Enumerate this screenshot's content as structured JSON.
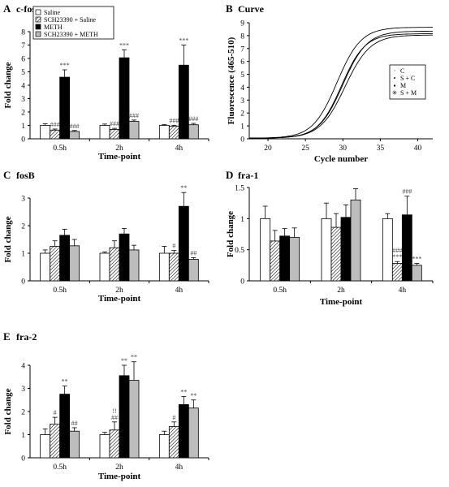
{
  "chart_data": [
    {
      "id": "A",
      "panel_letter": "A",
      "title": "c-fos",
      "type": "bar",
      "ylabel": "Fold change",
      "xlabel": "Time-point",
      "ylim": [
        0,
        8
      ],
      "yticks": [
        "0",
        "1",
        "2",
        "3",
        "4",
        "5",
        "6",
        "7",
        "8"
      ],
      "categories": [
        "0.5h",
        "2h",
        "4h"
      ],
      "legend": {
        "placement": "top-left",
        "entries": [
          "Saline",
          "SCH23390 + Saline",
          "METH",
          "SCH23390 + METH"
        ]
      },
      "series": [
        {
          "name": "Saline",
          "values": [
            1.0,
            1.0,
            1.0
          ],
          "errors": [
            0.12,
            0.1,
            0.07
          ],
          "marks": [
            "",
            "",
            ""
          ]
        },
        {
          "name": "SCH23390 + Saline",
          "values": [
            0.65,
            0.7,
            0.95
          ],
          "errors": [
            0.08,
            0.08,
            0.06
          ],
          "marks": [
            "###",
            "###",
            "###"
          ]
        },
        {
          "name": "METH",
          "values": [
            4.6,
            6.05,
            5.5
          ],
          "errors": [
            0.55,
            0.6,
            1.5
          ],
          "marks": [
            "***",
            "***",
            "***"
          ]
        },
        {
          "name": "SCH23390 + METH",
          "values": [
            0.55,
            1.3,
            1.05
          ],
          "errors": [
            0.07,
            0.1,
            0.1
          ],
          "marks": [
            "###",
            "###",
            "###"
          ]
        }
      ]
    },
    {
      "id": "B",
      "panel_letter": "B",
      "title": "Curve",
      "type": "line",
      "ylabel": "Fluorescence (465-510)",
      "xlabel": "Cycle number",
      "xlim": [
        17.5,
        42
      ],
      "ylim": [
        0,
        9
      ],
      "xticks": [
        "20",
        "25",
        "30",
        "35",
        "40"
      ],
      "yticks": [
        "0",
        "1",
        "2",
        "3",
        "4",
        "5",
        "6",
        "7",
        "8",
        "9"
      ],
      "legend": {
        "placement": "right",
        "entries": [
          "C",
          "S + C",
          "M",
          "S + M"
        ]
      },
      "series": [
        {
          "name": "C",
          "marker": "·",
          "params": {
            "top": 8.6,
            "mid": 29.2,
            "k": 0.62
          }
        },
        {
          "name": "S + C",
          "marker": "•",
          "params": {
            "top": 8.1,
            "mid": 29.8,
            "k": 0.64
          }
        },
        {
          "name": "M",
          "marker": "▪",
          "params": {
            "top": 8.3,
            "mid": 30.0,
            "k": 0.62
          }
        },
        {
          "name": "S + M",
          "marker": "✳",
          "params": {
            "top": 8.0,
            "mid": 30.3,
            "k": 0.6
          }
        }
      ]
    },
    {
      "id": "C",
      "panel_letter": "C",
      "title": "fosB",
      "type": "bar",
      "ylabel": "Fold change",
      "xlabel": "Time-point",
      "ylim": [
        0,
        3
      ],
      "yticks": [
        "0",
        "1",
        "2",
        "3"
      ],
      "categories": [
        "0.5h",
        "2h",
        "4h"
      ],
      "series": [
        {
          "name": "Saline",
          "values": [
            1.0,
            1.0,
            1.0
          ],
          "errors": [
            0.12,
            0.05,
            0.25
          ],
          "marks": [
            "",
            "",
            ""
          ]
        },
        {
          "name": "SCH23390 + Saline",
          "values": [
            1.25,
            1.2,
            1.0
          ],
          "errors": [
            0.2,
            0.25,
            0.1
          ],
          "marks": [
            "",
            "",
            "#"
          ]
        },
        {
          "name": "METH",
          "values": [
            1.65,
            1.7,
            2.7
          ],
          "errors": [
            0.22,
            0.2,
            0.5
          ],
          "marks": [
            "",
            "",
            "**"
          ]
        },
        {
          "name": "SCH23390 + METH",
          "values": [
            1.27,
            1.12,
            0.78
          ],
          "errors": [
            0.23,
            0.17,
            0.06
          ],
          "marks": [
            "",
            "",
            "##"
          ]
        }
      ]
    },
    {
      "id": "D",
      "panel_letter": "D",
      "title": "fra-1",
      "type": "bar",
      "ylabel": "Fold change",
      "xlabel": "Time-point",
      "ylim": [
        0,
        1.5
      ],
      "yticks": [
        "0",
        "0.5",
        "1",
        "1.5"
      ],
      "categories": [
        "0.5h",
        "2h",
        "4h"
      ],
      "series": [
        {
          "name": "Saline",
          "values": [
            1.0,
            1.0,
            1.0
          ],
          "errors": [
            0.2,
            0.25,
            0.08
          ],
          "marks": [
            "",
            "",
            ""
          ]
        },
        {
          "name": "SCH23390 + Saline",
          "values": [
            0.64,
            0.86,
            0.28
          ],
          "errors": [
            0.17,
            0.22,
            0.03
          ],
          "marks": [
            "",
            "",
            "###\n***"
          ]
        },
        {
          "name": "METH",
          "values": [
            0.72,
            1.02,
            1.06
          ],
          "errors": [
            0.12,
            0.2,
            0.3
          ],
          "marks": [
            "",
            "",
            "###"
          ]
        },
        {
          "name": "SCH23390 + METH",
          "values": [
            0.7,
            1.3,
            0.25
          ],
          "errors": [
            0.15,
            0.18,
            0.03
          ],
          "marks": [
            "",
            "",
            "***"
          ]
        }
      ]
    },
    {
      "id": "E",
      "panel_letter": "E",
      "title": "fra-2",
      "type": "bar",
      "ylabel": "Fold change",
      "xlabel": "Time-point",
      "ylim": [
        0,
        4
      ],
      "yticks": [
        "0",
        "1",
        "2",
        "3",
        "4"
      ],
      "categories": [
        "0.5h",
        "2h",
        "4h"
      ],
      "series": [
        {
          "name": "Saline",
          "values": [
            1.0,
            1.0,
            1.0
          ],
          "errors": [
            0.25,
            0.1,
            0.15
          ],
          "marks": [
            "",
            "",
            ""
          ]
        },
        {
          "name": "SCH23390 + Saline",
          "values": [
            1.45,
            1.2,
            1.35
          ],
          "errors": [
            0.3,
            0.35,
            0.2
          ],
          "marks": [
            "#",
            "!!\n##",
            "#"
          ]
        },
        {
          "name": "METH",
          "values": [
            2.75,
            3.55,
            2.3
          ],
          "errors": [
            0.35,
            0.45,
            0.35
          ],
          "marks": [
            "**",
            "**",
            "**"
          ]
        },
        {
          "name": "SCH23390 + METH",
          "values": [
            1.15,
            3.35,
            2.15
          ],
          "errors": [
            0.15,
            0.8,
            0.35
          ],
          "marks": [
            "##",
            "**",
            "**"
          ]
        }
      ]
    }
  ]
}
